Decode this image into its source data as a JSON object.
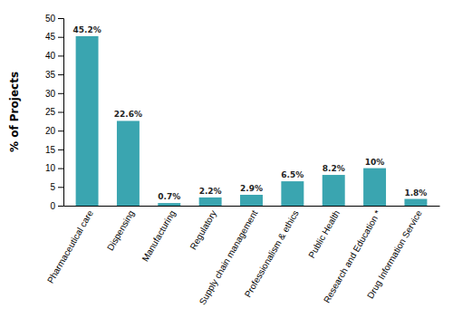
{
  "chart_data": {
    "type": "bar",
    "ylabel": "% of Projects",
    "categories": [
      "Pharmaceutical care",
      "Dispensing",
      "Manufacturing",
      "Regulatory",
      "Supply chain management",
      "Professionalism & ethics",
      "Public Health",
      "Research and Education *",
      "Drug Information Service"
    ],
    "values": [
      45.2,
      22.6,
      0.7,
      2.2,
      2.9,
      6.5,
      8.2,
      10.0,
      1.8
    ],
    "value_labels": [
      "45.2%",
      "22.6%",
      "0.7%",
      "2.2%",
      "2.9%",
      "6.5%",
      "8.2%",
      "10%",
      "1.8%"
    ],
    "data_labels": true,
    "color": "#3aa5b0",
    "ylim": [
      0,
      50
    ],
    "yticks": [
      0,
      5,
      10,
      15,
      20,
      25,
      30,
      35,
      40,
      45,
      50
    ],
    "grid": false
  }
}
